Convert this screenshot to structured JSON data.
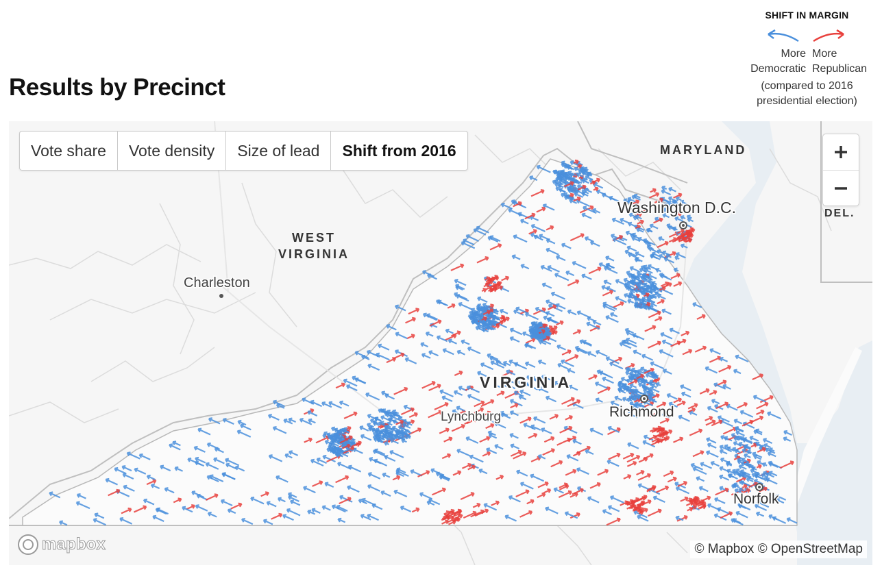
{
  "heading": "Results by Precinct",
  "legend": {
    "title": "SHIFT IN MARGIN",
    "dem_line1": "More",
    "dem_line2": "Democratic",
    "rep_line1": "More",
    "rep_line2": "Republican",
    "note_line1": "(compared to 2016",
    "note_line2": "presidential election)",
    "dem_color": "#4a8fdc",
    "rep_color": "#e8403c"
  },
  "tabs": [
    {
      "label": "Vote share",
      "active": false
    },
    {
      "label": "Vote density",
      "active": false
    },
    {
      "label": "Size of lead",
      "active": false
    },
    {
      "label": "Shift from 2016",
      "active": true
    }
  ],
  "zoom": {
    "in_icon": "plus-icon",
    "out_icon": "minus-icon"
  },
  "map_labels": {
    "maryland": "MARYLAND",
    "west_virginia_1": "WEST",
    "west_virginia_2": "VIRGINIA",
    "virginia": "VIRGINIA",
    "del": "DEL.",
    "washington": "Washington D.C.",
    "charleston": "Charleston",
    "lynchburg": "Lynchburg",
    "richmond": "Richmond",
    "norfolk": "Norfolk"
  },
  "mapbox_logo": "mapbox",
  "attribution": "© Mapbox © OpenStreetMap"
}
